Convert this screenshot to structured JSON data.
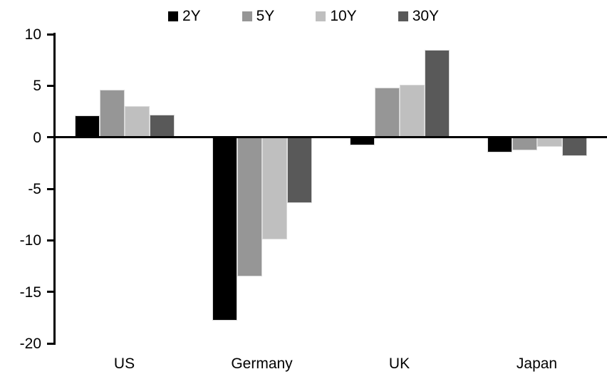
{
  "chart_data": {
    "type": "bar",
    "title": "",
    "xlabel": "",
    "ylabel": "",
    "categories": [
      "US",
      "Germany",
      "UK",
      "Japan"
    ],
    "series": [
      {
        "name": "2Y",
        "color": "#000000",
        "values": [
          2.1,
          -17.8,
          -0.8,
          -1.5
        ]
      },
      {
        "name": "5Y",
        "color": "#969696",
        "values": [
          4.6,
          -13.5,
          4.8,
          -1.3
        ]
      },
      {
        "name": "10Y",
        "color": "#bfbfbf",
        "values": [
          3.0,
          -9.9,
          5.1,
          -0.9
        ]
      },
      {
        "name": "30Y",
        "color": "#595959",
        "values": [
          2.2,
          -6.4,
          8.5,
          -1.8
        ]
      }
    ],
    "ylim": [
      -20,
      10
    ],
    "yticks": [
      10,
      5,
      0,
      -5,
      -10,
      -15,
      -20
    ],
    "ytick_interval": 5,
    "grid": false,
    "legend_position": "top-center",
    "axis_color": "#000000",
    "background_color": "#ffffff",
    "bar_border_color": "#d9d9d9"
  }
}
